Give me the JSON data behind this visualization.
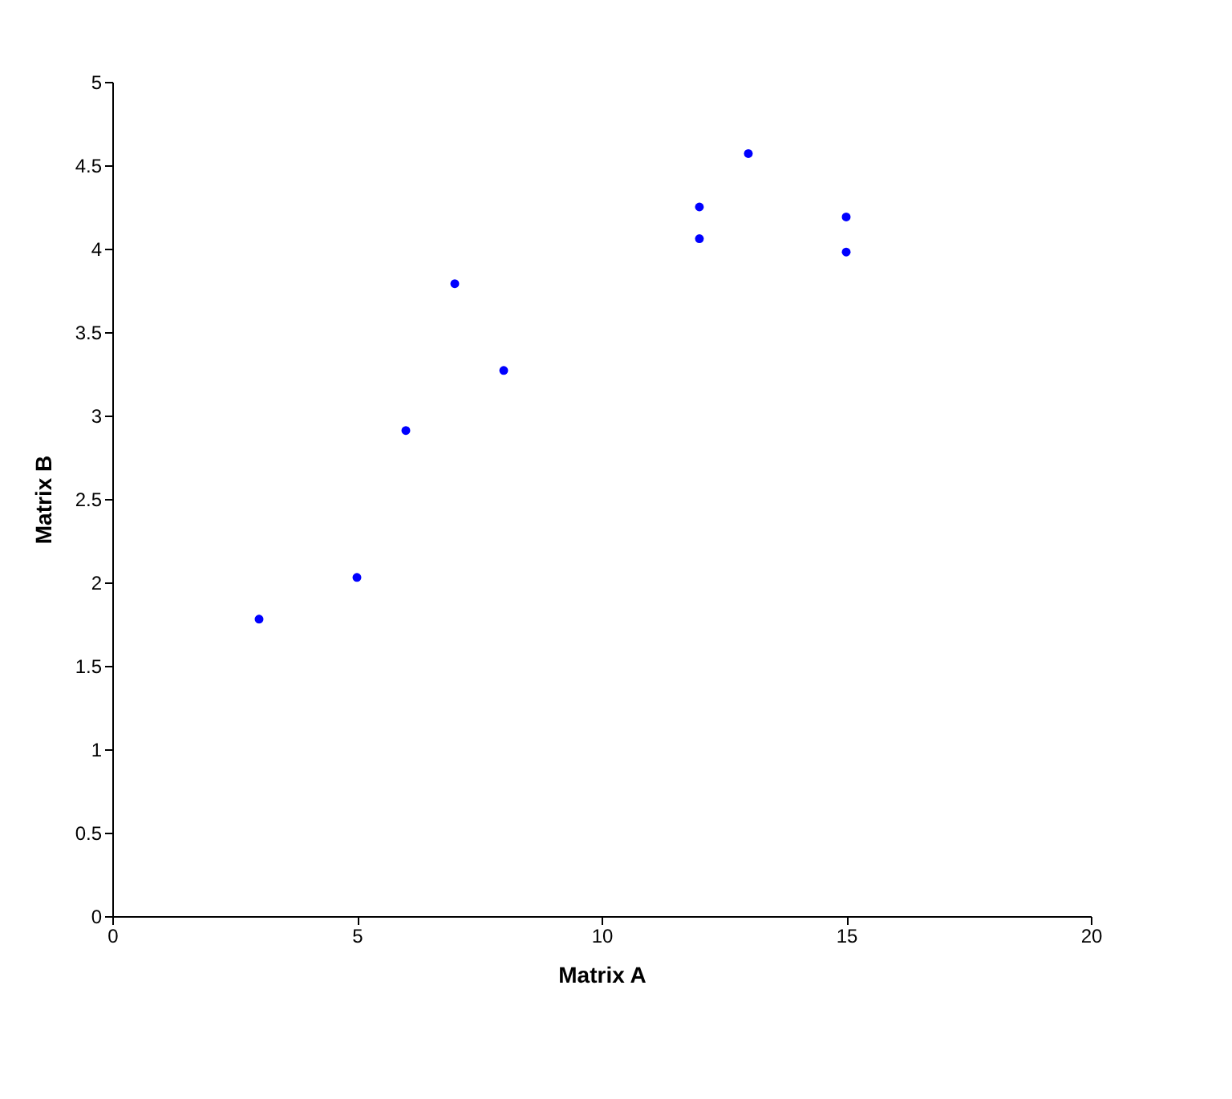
{
  "chart_data": {
    "type": "scatter",
    "xlabel": "Matrix A",
    "ylabel": "Matrix B",
    "x": [
      3,
      5,
      6,
      7,
      8,
      12,
      12,
      13,
      15,
      15
    ],
    "series": [
      {
        "color": "#0000ff",
        "values": [
          1.78,
          2.03,
          2.91,
          3.79,
          3.27,
          4.25,
          4.06,
          4.57,
          4.19,
          3.98
        ]
      }
    ],
    "xlim": [
      0,
      20
    ],
    "xticks": [
      0,
      5,
      10,
      15,
      20
    ],
    "ylim": [
      0,
      5
    ],
    "yticks": [
      0,
      0.5,
      1,
      1.5,
      2,
      2.5,
      3,
      3.5,
      4,
      4.5,
      5
    ],
    "grid": false,
    "legend": false,
    "marker": "circle"
  }
}
